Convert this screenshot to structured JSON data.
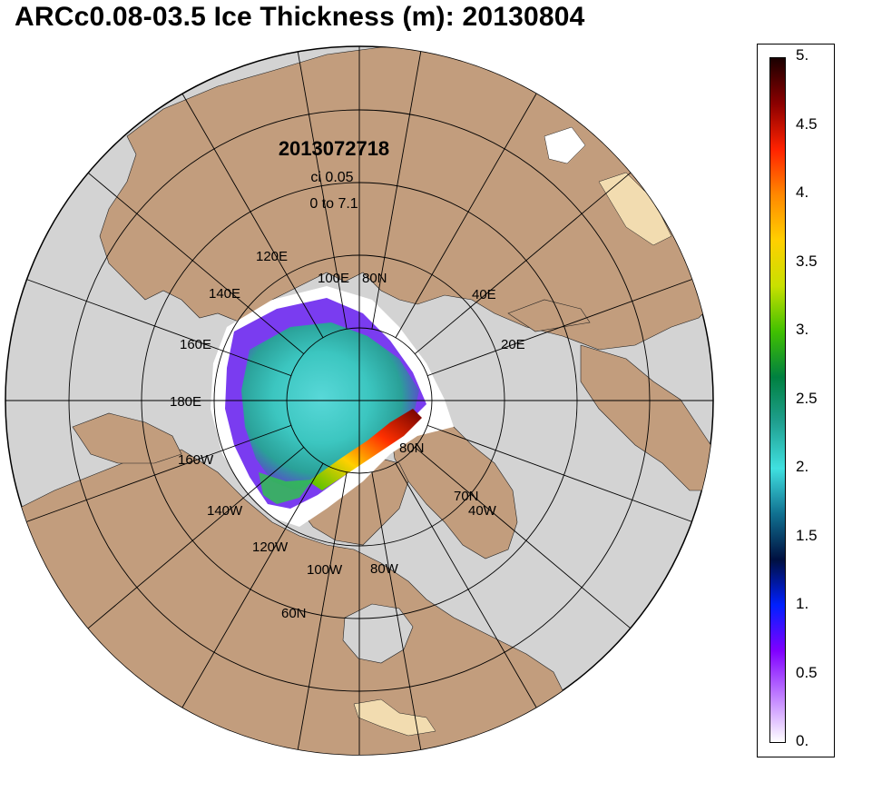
{
  "title": "ARCc0.08-03.5 Ice Thickness (m): 20130804",
  "stamp": {
    "datetime": "2013072718",
    "ci": "ci 0.05",
    "range": "0 to 7.1"
  },
  "grid_labels": {
    "lon_120e": "120E",
    "lon_140e": "140E",
    "lon_160e": "160E",
    "lon_180e": "180E",
    "lon_160w": "160W",
    "lon_140w": "140W",
    "lon_120w": "120W",
    "lon_100w": "100W",
    "lon_80w": "80W",
    "lon_40w": "40W",
    "lon_100e": "100E",
    "lon_40e": "40E",
    "lon_20e": "20E",
    "lat_80n_a": "80N",
    "lat_80n_b": "80N",
    "lat_70n": "70N",
    "lat_60n": "60N"
  },
  "colorbar": {
    "ticks": [
      "5.",
      "4.5",
      "4.",
      "3.5",
      "3.",
      "2.5",
      "2.",
      "1.5",
      "1.",
      "0.5",
      "0."
    ],
    "stops": [
      "#1a0000",
      "#8b0000",
      "#ff2200",
      "#ff8800",
      "#ffd000",
      "#c8e000",
      "#40c000",
      "#008040",
      "#20a090",
      "#40e0e0",
      "#107090",
      "#001040",
      "#0020ff",
      "#8000ff",
      "#c080ff",
      "#ffffff"
    ]
  },
  "colors": {
    "land": "#c29d7d",
    "ocean": "#d3d3d3",
    "ice_white": "#ffffff",
    "lake_light": "#f2dcb0"
  }
}
